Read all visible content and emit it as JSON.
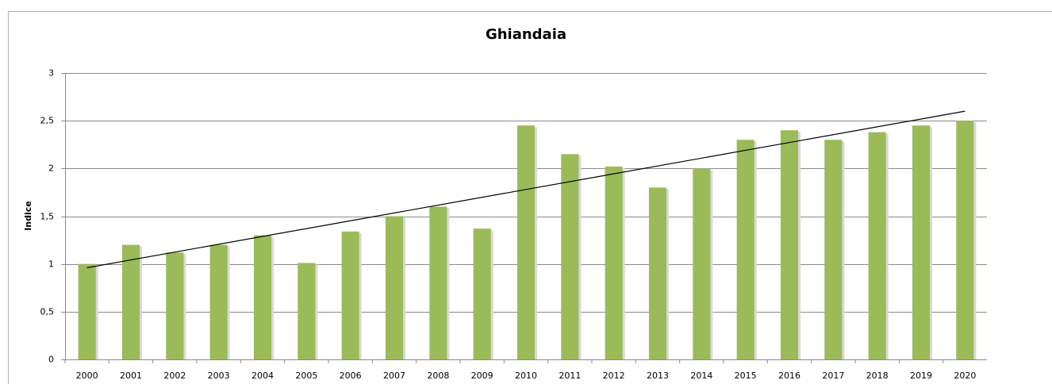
{
  "chart_data": {
    "type": "bar",
    "title": "Ghiandaia",
    "y_label": "Indice",
    "categories": [
      "2000",
      "2001",
      "2002",
      "2003",
      "2004",
      "2005",
      "2006",
      "2007",
      "2008",
      "2009",
      "2010",
      "2011",
      "2012",
      "2013",
      "2014",
      "2015",
      "2016",
      "2017",
      "2018",
      "2019",
      "2020"
    ],
    "values": [
      1.0,
      1.2,
      1.12,
      1.2,
      1.3,
      1.01,
      1.34,
      1.5,
      1.6,
      1.37,
      2.45,
      2.15,
      2.02,
      1.8,
      2.0,
      2.3,
      2.4,
      2.3,
      2.38,
      2.45,
      2.5
    ],
    "color": "#9bbb59",
    "trendline": [
      0.96,
      2.6
    ],
    "trendline_color": "#000000",
    "ylim": [
      0,
      3
    ],
    "yticks": [
      0,
      {
        "value": 0.5,
        "label": "0,5"
      },
      1,
      {
        "value": 1.5,
        "label": "1,5"
      },
      2,
      {
        "value": 2.5,
        "label": "2,5"
      },
      3
    ],
    "grid": true
  }
}
